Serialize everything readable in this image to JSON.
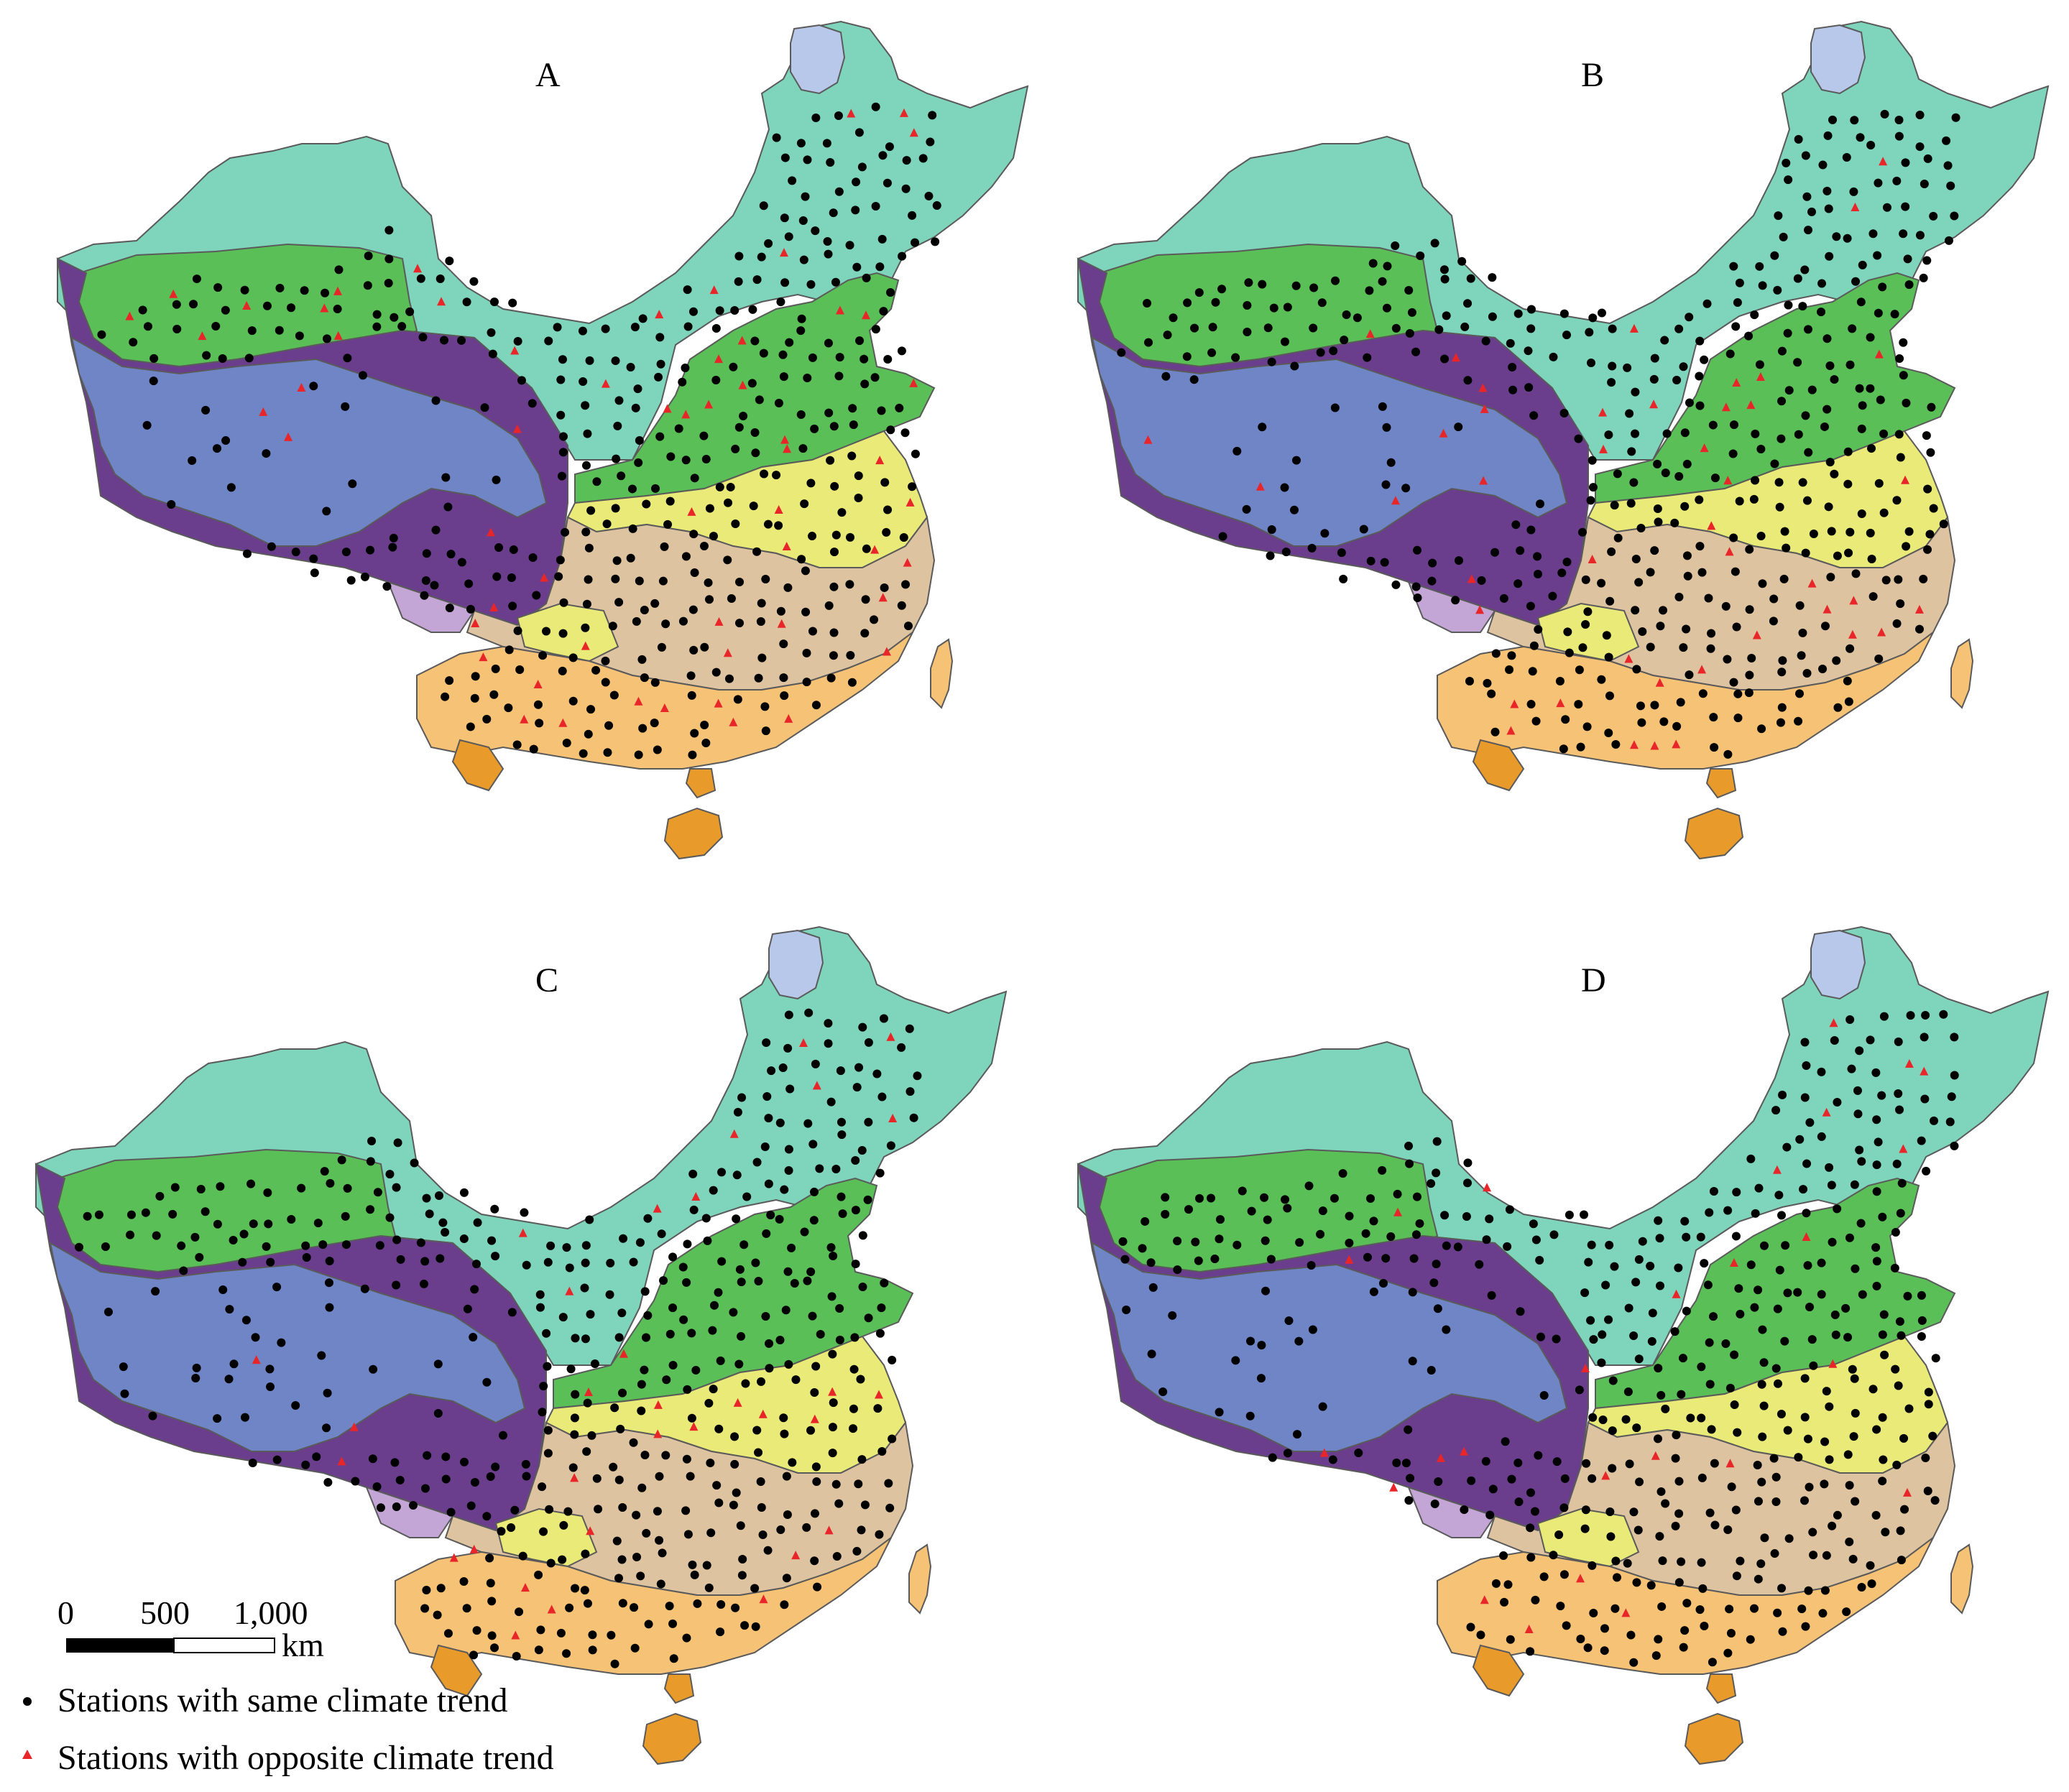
{
  "colors": {
    "north_arid": "#7fd4bc",
    "tarim_basin": "#5abf56",
    "north_china_plain": "#5abf56",
    "qinghai_plateau": "#6f85c6",
    "plateau_margin": "#6a3e8c",
    "south_tibet": "#c4a6d6",
    "yangtze_north": "#eaea78",
    "subtropics": "#ddc3a0",
    "south_subtropics": "#f6c275",
    "hainan": "#e89a2a",
    "hulun_lake": "#b7c8ea",
    "taiwan": "#f6c275",
    "same_marker": "#000000",
    "opposite_marker": "#e8262a"
  },
  "panels": [
    {
      "label": "A",
      "opposite_count": 58
    },
    {
      "label": "B",
      "opposite_count": 44
    },
    {
      "label": "C",
      "opposite_count": 32
    },
    {
      "label": "D",
      "opposite_count": 26
    }
  ],
  "scale_bar": {
    "tick_0": "0",
    "tick_500": "500",
    "tick_1000": "1,000",
    "unit": "km"
  },
  "legend": {
    "same_label": "Stations with same climate trend",
    "opposite_label": "Stations with opposite climate trend",
    "same_icon": "black-dot-icon",
    "opposite_icon": "red-triangle-icon"
  }
}
